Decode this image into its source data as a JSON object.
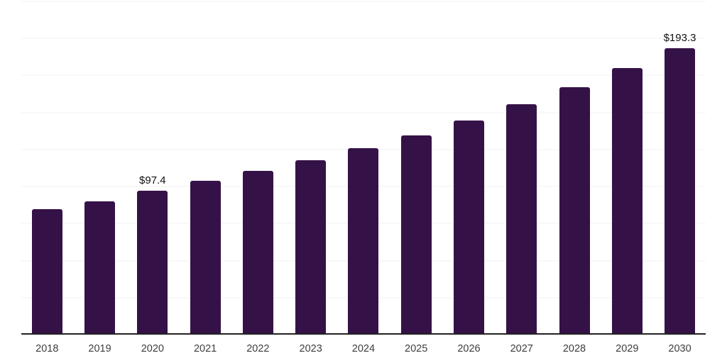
{
  "chart_data": {
    "type": "bar",
    "title": "",
    "xlabel": "",
    "ylabel": "",
    "categories": [
      "2018",
      "2019",
      "2020",
      "2021",
      "2022",
      "2023",
      "2024",
      "2025",
      "2026",
      "2027",
      "2028",
      "2029",
      "2030"
    ],
    "values": [
      84.6,
      90.1,
      97.4,
      103.7,
      110.5,
      118.0,
      126.1,
      134.4,
      144.4,
      155.7,
      167.0,
      179.8,
      193.3
    ],
    "data_labels": {
      "2020": "$97.4",
      "2030": "$193.3"
    },
    "ylim": [
      0,
      225
    ],
    "gridline_interval": 25,
    "grid": "horizontal-only",
    "legend": "none",
    "y_axis_labels_visible": false,
    "colors": {
      "bar": "#341247",
      "gridline": "#f2f2f2",
      "axis_line": "#222222",
      "tick_label": "#3d3d3d",
      "data_label": "#111111",
      "background": "#ffffff"
    }
  }
}
